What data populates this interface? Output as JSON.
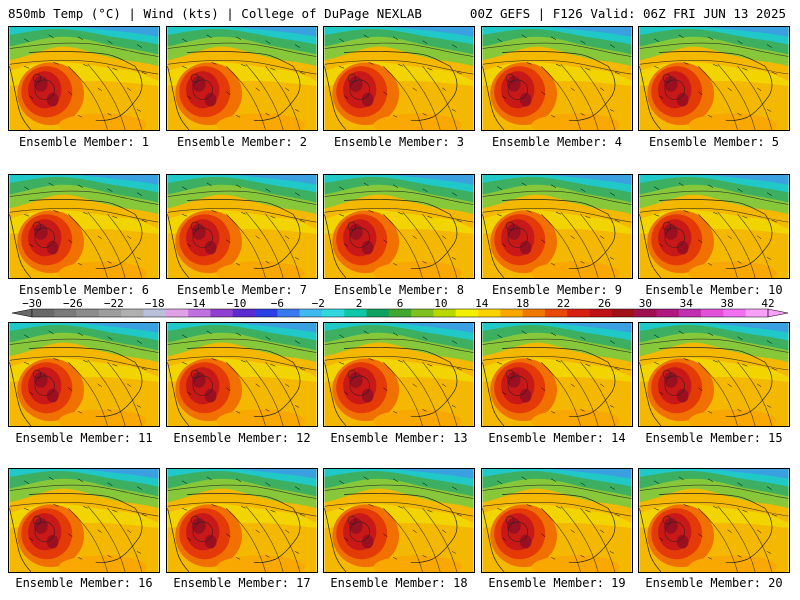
{
  "header": {
    "left": "850mb Temp (°C) | Wind (kts) | College of DuPage NEXLAB",
    "right": "00Z GEFS | F126 Valid: 06Z FRI JUN 13 2025"
  },
  "panels": [
    {
      "label": "Ensemble Member: 1"
    },
    {
      "label": "Ensemble Member: 2"
    },
    {
      "label": "Ensemble Member: 3"
    },
    {
      "label": "Ensemble Member: 4"
    },
    {
      "label": "Ensemble Member: 5"
    },
    {
      "label": "Ensemble Member: 6"
    },
    {
      "label": "Ensemble Member: 7"
    },
    {
      "label": "Ensemble Member: 8"
    },
    {
      "label": "Ensemble Member: 9"
    },
    {
      "label": "Ensemble Member: 10"
    },
    {
      "label": "Ensemble Member: 11"
    },
    {
      "label": "Ensemble Member: 12"
    },
    {
      "label": "Ensemble Member: 13"
    },
    {
      "label": "Ensemble Member: 14"
    },
    {
      "label": "Ensemble Member: 15"
    },
    {
      "label": "Ensemble Member: 16"
    },
    {
      "label": "Ensemble Member: 17"
    },
    {
      "label": "Ensemble Member: 18"
    },
    {
      "label": "Ensemble Member: 19"
    },
    {
      "label": "Ensemble Member: 20"
    }
  ],
  "colorbar": {
    "labels": [
      "−30",
      "−26",
      "−22",
      "−18",
      "−14",
      "−10",
      "−6",
      "−2",
      "2",
      "6",
      "10",
      "14",
      "18",
      "22",
      "26",
      "30",
      "34",
      "38",
      "42"
    ],
    "colors": [
      "#686868",
      "#7a7a7a",
      "#8c8c8c",
      "#9e9e9e",
      "#b0b0b0",
      "#b8c0dc",
      "#e0a0e6",
      "#c070e0",
      "#9040d0",
      "#5a2ad0",
      "#2b3fe6",
      "#3a78f0",
      "#40b8f0",
      "#30d8dc",
      "#10c8a8",
      "#10a060",
      "#40a830",
      "#80c020",
      "#b8d800",
      "#f0f000",
      "#fcd200",
      "#f8a800",
      "#f07800",
      "#e84808",
      "#d82010",
      "#c01018",
      "#a01018",
      "#a01050",
      "#b01880",
      "#c030b0",
      "#e050d8",
      "#f070f0",
      "#f8a0f8"
    ]
  }
}
